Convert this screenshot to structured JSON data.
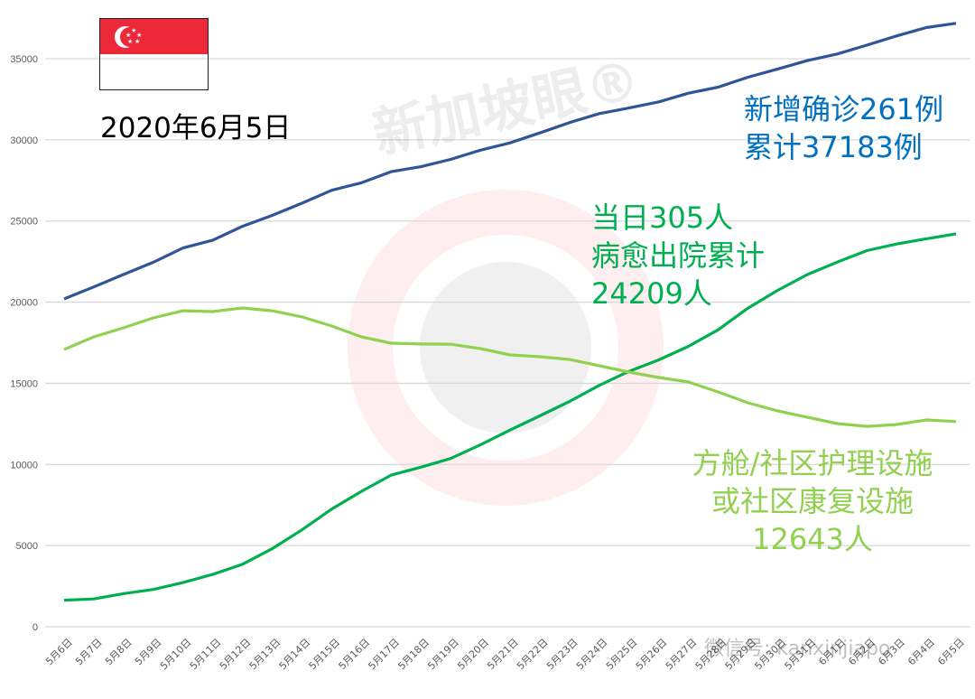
{
  "chart_data": {
    "type": "line",
    "title": "",
    "date_label": "2020年6月5日",
    "xlabel": "",
    "ylabel": "",
    "ylim": [
      0,
      35000
    ],
    "yticks": [
      0,
      5000,
      10000,
      15000,
      20000,
      25000,
      30000,
      35000
    ],
    "grid": true,
    "categories": [
      "5月6日",
      "5月7日",
      "5月8日",
      "5月9日",
      "5月10日",
      "5月11日",
      "5月12日",
      "5月13日",
      "5月14日",
      "5月15日",
      "5月16日",
      "5月17日",
      "5月18日",
      "5月19日",
      "5月20日",
      "5月21日",
      "5月22日",
      "5月23日",
      "5月24日",
      "5月25日",
      "5月26日",
      "5月27日",
      "5月28日",
      "5月29日",
      "5月30日",
      "5月31日",
      "6月1日",
      "6月2日",
      "6月3日",
      "6月4日",
      "6月5日"
    ],
    "series": [
      {
        "color": "#2f5597",
        "values": [
          20198,
          20939,
          21707,
          22460,
          23336,
          23822,
          24671,
          25346,
          26098,
          26891,
          27356,
          28038,
          28343,
          28794,
          29364,
          29812,
          30426,
          31068,
          31616,
          31960,
          32343,
          32876,
          33249,
          33860,
          34366,
          34884,
          35292,
          35836,
          36405,
          36922,
          37183
        ]
      },
      {
        "color": "#00b050",
        "values": [
          1634,
          1712,
          2040,
          2296,
          2721,
          3225,
          3851,
          4809,
          5973,
          7248,
          8342,
          9340,
          9835,
          10365,
          11207,
          12117,
          12995,
          13882,
          14876,
          15738,
          16444,
          17276,
          18294,
          19631,
          20727,
          21699,
          22466,
          23175,
          23582,
          23904,
          24209
        ]
      },
      {
        "color": "#92d050",
        "values": [
          17080,
          17860,
          18420,
          19030,
          19470,
          19420,
          19640,
          19470,
          19090,
          18530,
          17860,
          17470,
          17420,
          17410,
          17140,
          16750,
          16640,
          16470,
          16080,
          15690,
          15360,
          15080,
          14470,
          13800,
          13300,
          12910,
          12520,
          12350,
          12460,
          12740,
          12643
        ]
      }
    ],
    "annotations": {
      "confirmed": [
        "新增确诊261例",
        "累计37183例"
      ],
      "discharged": [
        "当日305人",
        "病愈出院累计",
        "24209人"
      ],
      "community": [
        "方舱/社区护理设施",
        "或社区康复设施",
        "12643人"
      ]
    }
  },
  "watermark": {
    "logo": "新加坡眼®",
    "wechat": "微信号: kanxinjiapo"
  },
  "flag": "singapore-flag"
}
